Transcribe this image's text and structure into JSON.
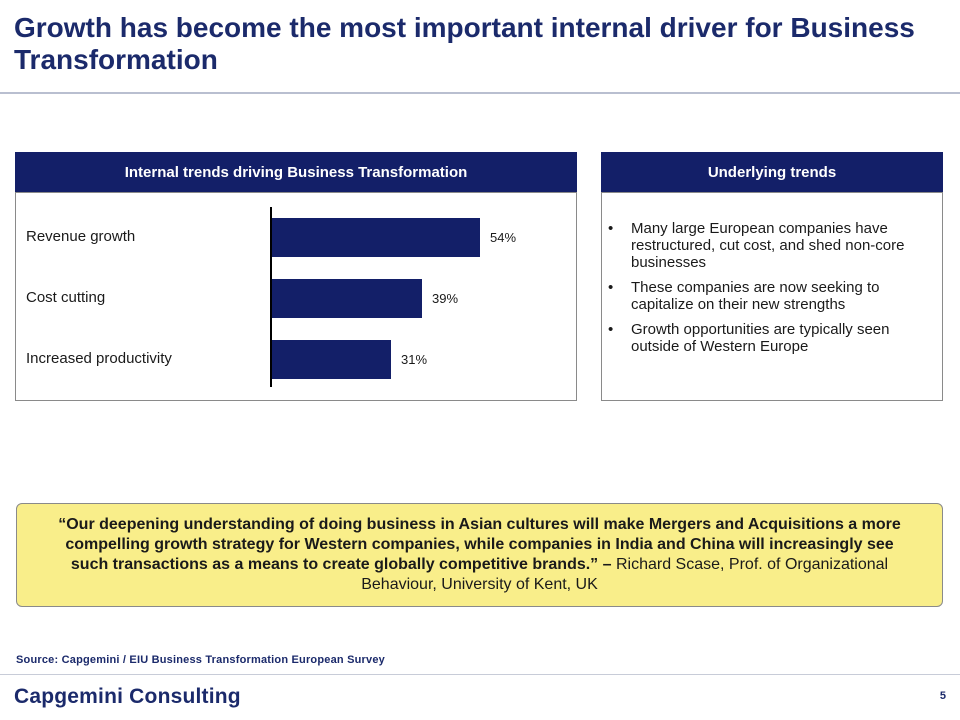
{
  "slide": {
    "title": "Growth has become the most important internal driver for Business Transformation"
  },
  "left_panel": {
    "header": "Internal trends driving Business Transformation"
  },
  "chart_data": {
    "type": "bar",
    "orientation": "horizontal",
    "title": "Internal trends driving Business Transformation",
    "categories": [
      "Revenue growth",
      "Cost cutting",
      "Increased productivity"
    ],
    "values": [
      54,
      39,
      31
    ],
    "value_labels": [
      "54%",
      "39%",
      "31%"
    ],
    "unit": "%",
    "xlim": [
      0,
      70
    ],
    "bar_color": "#131f68",
    "grid": false
  },
  "right_panel": {
    "header": "Underlying trends",
    "bullet_glyph": "•",
    "items": [
      "Many large European companies have restructured, cut cost, and shed non-core businesses",
      "These companies are now seeking to capitalize on their new strengths",
      "Growth opportunities are typically seen outside of Western Europe"
    ]
  },
  "quote": {
    "text": "“Our deepening understanding of doing business in Asian cultures will make Mergers and Acquisitions a more compelling growth strategy for Western companies, while companies in India and China will increasingly see such transactions as a means to create globally competitive brands.” –",
    "attribution": " Richard Scase, Prof. of Organizational Behaviour, University of Kent, UK",
    "background_color": "#f9ee8a"
  },
  "footer": {
    "source": "Source: Capgemini / EIU Business Transformation European Survey",
    "logo": "Capgemini Consulting",
    "page_number": "5"
  },
  "colors": {
    "brand_navy": "#131f68",
    "title_text": "#1b2a6b"
  }
}
